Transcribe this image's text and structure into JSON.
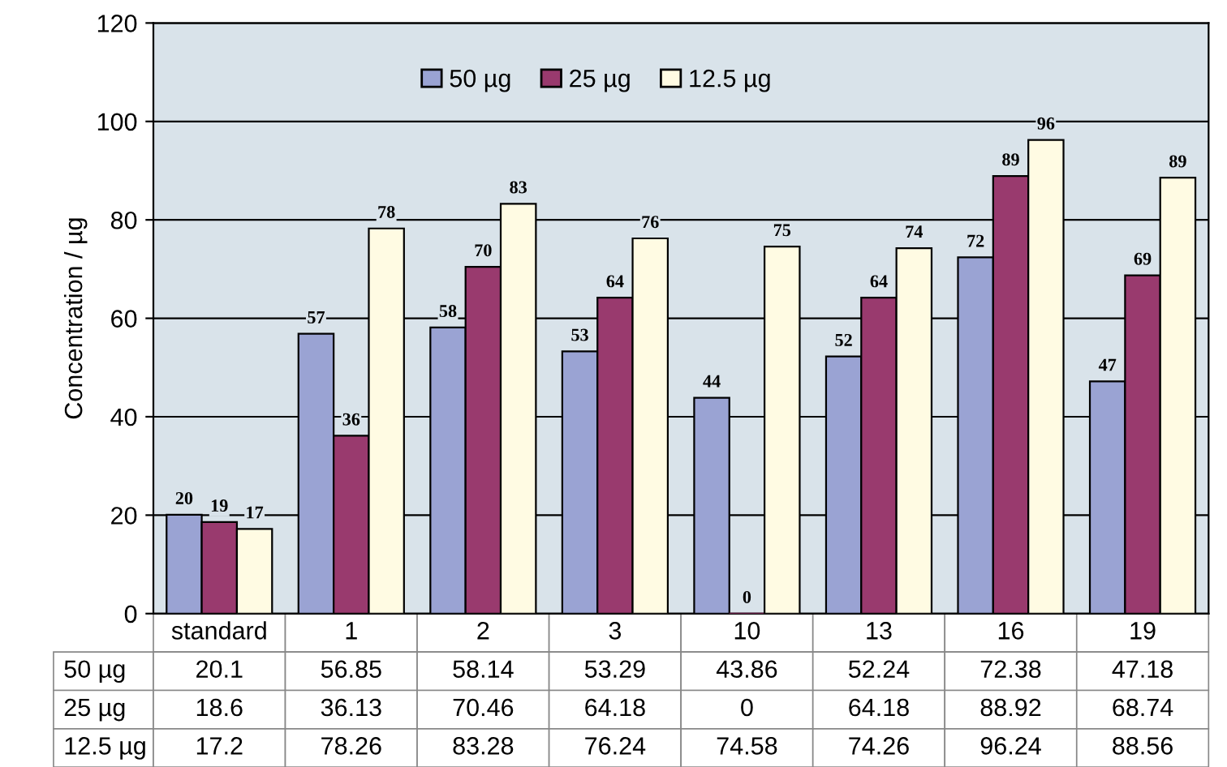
{
  "chart_data": {
    "type": "bar",
    "ylabel": "Concentration / µg",
    "categories": [
      "standard",
      "1",
      "2",
      "3",
      "10",
      "13",
      "16",
      "19"
    ],
    "series": [
      {
        "name": "50 µg",
        "color": "#9aa3d3",
        "values": [
          20.1,
          56.85,
          58.14,
          53.29,
          43.86,
          52.24,
          72.38,
          47.18
        ]
      },
      {
        "name": "25 µg",
        "color": "#993a6e",
        "values": [
          18.6,
          36.13,
          70.46,
          64.18,
          0,
          64.18,
          88.92,
          68.74
        ]
      },
      {
        "name": "12.5 µg",
        "color": "#fffbe3",
        "values": [
          17.2,
          78.26,
          83.28,
          76.24,
          74.58,
          74.26,
          96.24,
          88.56
        ]
      }
    ],
    "annotations": [
      "20",
      "57",
      "58",
      "53",
      "44",
      "52",
      "72",
      "47",
      "19",
      "36",
      "70",
      "64",
      "0",
      "64",
      "89",
      "69",
      "17",
      "78",
      "83",
      "76",
      "75",
      "74",
      "96",
      "89"
    ],
    "ylim": [
      0,
      120
    ],
    "yticks": [
      0,
      20,
      40,
      60,
      80,
      100,
      120
    ],
    "grid": "y",
    "legend": "top",
    "data_labels": true
  }
}
